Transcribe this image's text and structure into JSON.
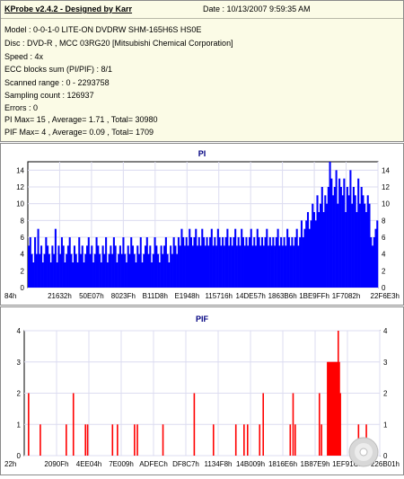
{
  "header": {
    "title": "KProbe v2.4.2 - Designed by Karr",
    "date": "Date : 10/13/2007 9:59:35 AM"
  },
  "info_lines": [
    "Model : 0-0-1-0 LITE-ON DVDRW SHM-165H6S HS0E",
    "Disc : DVD-R , MCC 03RG20  [Mitsubishi Chemical Corporation]",
    "Speed : 4x",
    "ECC blocks sum (PI/PIF) : 8/1",
    "Scanned range : 0 - 2293758",
    "Sampling count : 126937",
    "Errors : 0",
    "PI Max= 15 , Average= 1.71 , Total= 30980",
    "PIF Max= 4 , Average= 0.09 , Total= 1709"
  ],
  "colors": {
    "pi_bar": "#0000ff",
    "pif_bar": "#ff0000",
    "title_text": "#000080",
    "plot_background": "#ffffff"
  },
  "chart_data": [
    {
      "type": "bar",
      "title": "PI",
      "ylim": [
        0,
        15
      ],
      "y_ticks": [
        0,
        2,
        4,
        6,
        8,
        10,
        12,
        14
      ],
      "tick_labels": [
        "84h",
        "21632h",
        "50E07h",
        "8023Fh",
        "B11D8h",
        "E1948h",
        "115716h",
        "14DE57h",
        "1863B6h",
        "1BE9FFh",
        "1F7082h",
        "22F6E3h"
      ],
      "grid": true,
      "note_values": "PI errors per sample across scanned range (sampled, 221 points)",
      "values": [
        5,
        6,
        4,
        3,
        6,
        4,
        7,
        4,
        5,
        3,
        4,
        6,
        5,
        4,
        3,
        5,
        4,
        7,
        3,
        5,
        4,
        6,
        5,
        3,
        4,
        5,
        6,
        4,
        3,
        5,
        4,
        3,
        6,
        4,
        5,
        3,
        4,
        5,
        6,
        4,
        5,
        3,
        4,
        6,
        5,
        4,
        3,
        5,
        4,
        6,
        3,
        4,
        5,
        4,
        6,
        5,
        3,
        4,
        5,
        4,
        6,
        4,
        3,
        5,
        4,
        6,
        5,
        4,
        3,
        5,
        4,
        6,
        3,
        4,
        5,
        6,
        4,
        5,
        3,
        4,
        6,
        5,
        4,
        3,
        5,
        4,
        5,
        6,
        4,
        3,
        5,
        4,
        6,
        5,
        4,
        6,
        5,
        7,
        6,
        5,
        6,
        5,
        7,
        6,
        5,
        6,
        7,
        5,
        6,
        5,
        7,
        6,
        5,
        6,
        5,
        6,
        7,
        5,
        6,
        5,
        7,
        6,
        5,
        6,
        5,
        6,
        7,
        5,
        6,
        5,
        6,
        7,
        5,
        6,
        5,
        7,
        6,
        5,
        6,
        5,
        6,
        7,
        5,
        6,
        5,
        7,
        6,
        5,
        6,
        5,
        6,
        7,
        5,
        6,
        5,
        6,
        5,
        6,
        7,
        5,
        6,
        5,
        6,
        5,
        7,
        6,
        5,
        6,
        5,
        6,
        7,
        5,
        6,
        8,
        6,
        7,
        8,
        9,
        7,
        8,
        10,
        9,
        8,
        11,
        9,
        10,
        12,
        9,
        11,
        10,
        12,
        15,
        13,
        11,
        12,
        14,
        10,
        13,
        12,
        11,
        13,
        9,
        12,
        11,
        14,
        10,
        12,
        11,
        9,
        13,
        10,
        12,
        11,
        10,
        9,
        11,
        10,
        6,
        5,
        6,
        7,
        8
      ]
    },
    {
      "type": "bar",
      "title": "PIF",
      "ylim": [
        0,
        4
      ],
      "y_ticks": [
        0,
        1,
        2,
        3,
        4
      ],
      "tick_labels": [
        "22h",
        "2090Fh",
        "4EE04h",
        "7E009h",
        "ADFECh",
        "DF8C7h",
        "1134F8h",
        "14B009h",
        "1816E6h",
        "1B87E9h",
        "1EF91Ch",
        "226B01h"
      ],
      "grid": true,
      "note_values": "PIF spikes: x = fraction of scanned range, value = PIF",
      "spikes": [
        {
          "x": 0.012,
          "value": 2
        },
        {
          "x": 0.045,
          "value": 1
        },
        {
          "x": 0.118,
          "value": 1
        },
        {
          "x": 0.138,
          "value": 2
        },
        {
          "x": 0.172,
          "value": 1
        },
        {
          "x": 0.178,
          "value": 1
        },
        {
          "x": 0.248,
          "value": 1
        },
        {
          "x": 0.262,
          "value": 1
        },
        {
          "x": 0.31,
          "value": 1
        },
        {
          "x": 0.318,
          "value": 1
        },
        {
          "x": 0.39,
          "value": 1
        },
        {
          "x": 0.478,
          "value": 2
        },
        {
          "x": 0.532,
          "value": 1
        },
        {
          "x": 0.595,
          "value": 1
        },
        {
          "x": 0.618,
          "value": 1
        },
        {
          "x": 0.628,
          "value": 1
        },
        {
          "x": 0.662,
          "value": 1
        },
        {
          "x": 0.672,
          "value": 2
        },
        {
          "x": 0.748,
          "value": 1
        },
        {
          "x": 0.756,
          "value": 2
        },
        {
          "x": 0.762,
          "value": 1
        },
        {
          "x": 0.83,
          "value": 2
        },
        {
          "x": 0.836,
          "value": 1
        },
        {
          "x": 0.853,
          "value": 3
        },
        {
          "x": 0.856,
          "value": 3
        },
        {
          "x": 0.859,
          "value": 3
        },
        {
          "x": 0.862,
          "value": 3
        },
        {
          "x": 0.865,
          "value": 3
        },
        {
          "x": 0.868,
          "value": 3
        },
        {
          "x": 0.871,
          "value": 3
        },
        {
          "x": 0.874,
          "value": 3
        },
        {
          "x": 0.877,
          "value": 3
        },
        {
          "x": 0.88,
          "value": 3
        },
        {
          "x": 0.883,
          "value": 4
        },
        {
          "x": 0.886,
          "value": 3
        },
        {
          "x": 0.889,
          "value": 2
        },
        {
          "x": 0.94,
          "value": 1
        },
        {
          "x": 0.962,
          "value": 1
        }
      ]
    }
  ]
}
